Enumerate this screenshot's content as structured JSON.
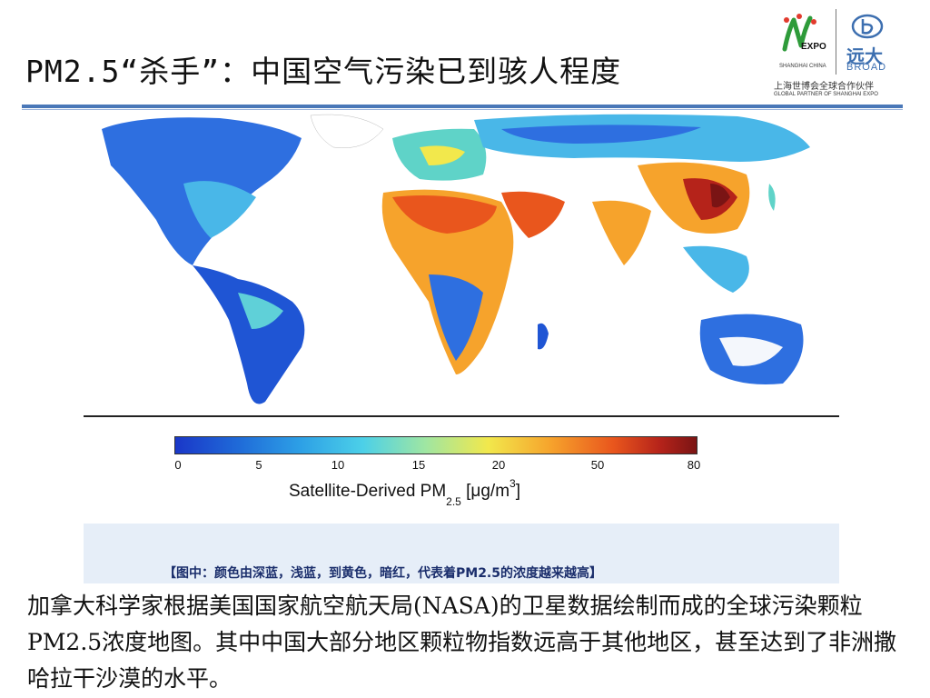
{
  "slide": {
    "title": "PM2.5“杀手”：中国空气污染已到骇人程度"
  },
  "logos": {
    "expo_text": "EXPO",
    "expo_sub": "SHANGHAI CHINA",
    "broad_cn": "远大",
    "broad_en": "BROAD",
    "partner_cn": "上海世博会全球合作伙伴",
    "partner_en": "GLOBAL PARTNER OF SHANGHAI EXPO"
  },
  "colorbar": {
    "ticks": [
      "0",
      "5",
      "10",
      "15",
      "20",
      "50",
      "80"
    ],
    "label_main": "Satellite-Derived PM",
    "label_sub": "2.5",
    "label_unit": "[μg/m",
    "label_sup": "3",
    "label_end": "]"
  },
  "caption": "【图中：颜色由深蓝，浅蓝，到黄色，暗红，代表着PM2.5的浓度越来越高】",
  "body_text": "加拿大科学家根据美国国家航空航天局(NASA)的卫星数据绘制而成的全球污染颗粒PM2.5浓度地图。其中中国大部分地区颗粒物指数远高于其他地区，甚至达到了非洲撒哈拉干沙漠的水平。"
}
